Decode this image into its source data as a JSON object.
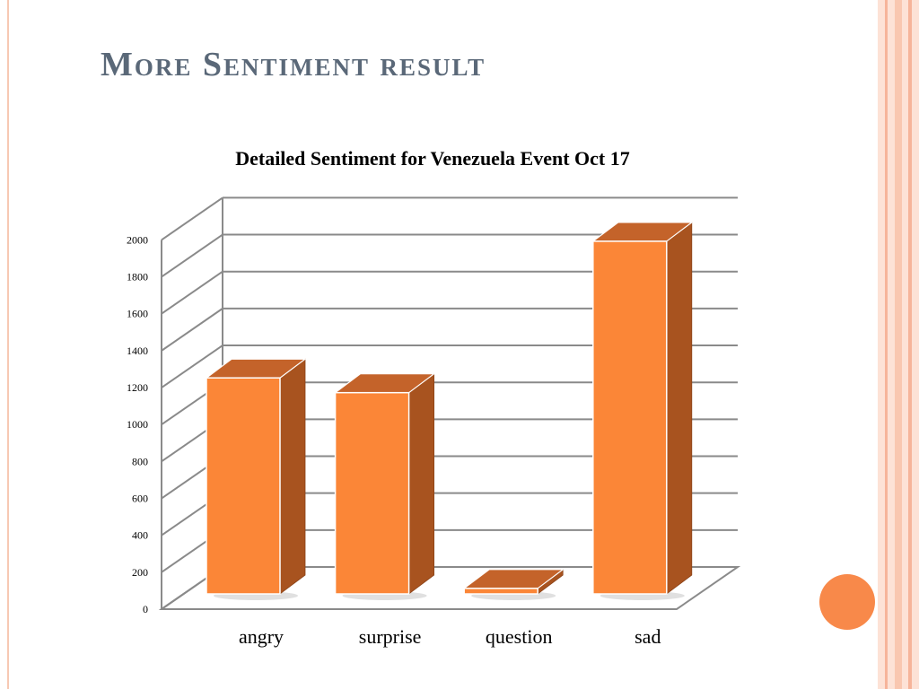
{
  "slide": {
    "title": "More Sentiment result"
  },
  "theme": {
    "bar_front": "#fb8637",
    "bar_side": "#a8531f",
    "bar_top": "#c4632a",
    "grid": "#8a8a8a",
    "title_color": "#5a6878",
    "accent_circle": "#f8894a",
    "border_stripe": "#f7c9b3"
  },
  "chart_data": {
    "type": "bar",
    "title": "Detailed Sentiment for Venezuela Event Oct 17",
    "categories": [
      "angry",
      "surprise",
      "question",
      "sad"
    ],
    "values": [
      1170,
      1090,
      30,
      1910
    ],
    "ylim": [
      0,
      2000
    ],
    "yticks": [
      "0",
      "200",
      "400",
      "600",
      "800",
      "1000",
      "1200",
      "1400",
      "1600",
      "1800",
      "2000"
    ],
    "xlabel": "",
    "ylabel": "",
    "grid": true,
    "legend": "none",
    "style": "3d"
  }
}
